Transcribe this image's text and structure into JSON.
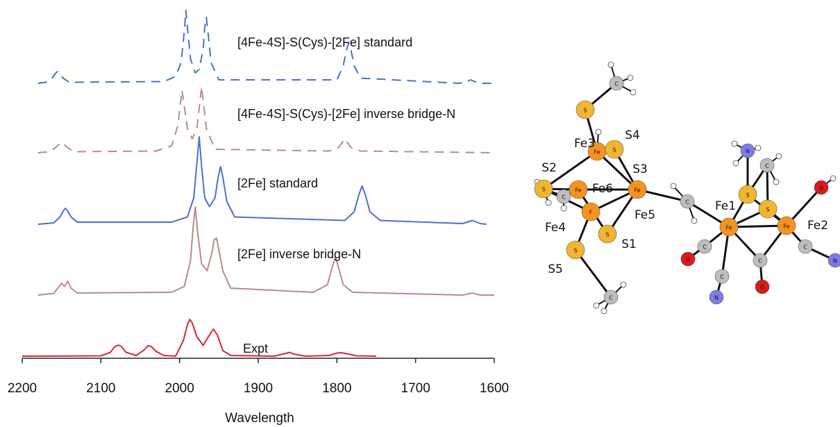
{
  "chart_data": {
    "type": "line",
    "x_label": "Wavelength",
    "xlim": [
      2200,
      1600
    ],
    "xticks": [
      2200,
      2100,
      2000,
      1900,
      1800,
      1700,
      1600
    ],
    "ylim": [
      0,
      106
    ],
    "series": [
      {
        "name": "[4Fe-4S]-S(Cys)-[2Fe] standard",
        "color": "#4a6fd4",
        "style": "dashed",
        "x": [
          2180,
          2170,
          2162,
          2158,
          2155,
          2152,
          2148,
          2140,
          2020,
          2005,
          1998,
          1994,
          1992,
          1990,
          1986,
          1980,
          1975,
          1970,
          1968,
          1966,
          1964,
          1960,
          1950,
          1800,
          1792,
          1788,
          1785,
          1782,
          1778,
          1770,
          1645,
          1635,
          1630,
          1625,
          1615,
          1600
        ],
        "values": [
          82,
          82.3,
          83.5,
          84.8,
          85.4,
          84.8,
          83.5,
          82.3,
          82.5,
          84,
          88,
          97,
          103,
          98,
          89,
          85,
          86,
          92,
          98,
          101,
          97,
          88,
          83,
          83,
          87,
          91.5,
          93.6,
          91.5,
          87,
          83.5,
          82,
          82.5,
          83,
          82.5,
          82,
          82
        ]
      },
      {
        "name": "[4Fe-4S]-S(Cys)-[2Fe] inverse bridge-N",
        "color": "#b98a8a",
        "style": "dashed",
        "x": [
          2180,
          2165,
          2156,
          2150,
          2144,
          2135,
          2030,
          2010,
          2002,
          1999,
          1997,
          1995,
          1990,
          1984,
          1978,
          1974,
          1972,
          1970,
          1966,
          1955,
          1810,
          1798,
          1793,
          1790,
          1787,
          1782,
          1770,
          1600
        ],
        "values": [
          62,
          62.3,
          63.8,
          65,
          63.8,
          62.3,
          62.5,
          64,
          70,
          76,
          80,
          77,
          69,
          66,
          69,
          77,
          81,
          77,
          69,
          63,
          62.5,
          63.5,
          65,
          66,
          65,
          63.5,
          62.5,
          62
        ]
      },
      {
        "name": "[2Fe] standard",
        "color": "#4a6fd4",
        "style": "solid",
        "x": [
          2180,
          2160,
          2152,
          2148,
          2145,
          2142,
          2138,
          2130,
          2010,
          1990,
          1982,
          1978,
          1975,
          1972,
          1968,
          1962,
          1955,
          1951,
          1948,
          1945,
          1940,
          1930,
          1790,
          1778,
          1772,
          1768,
          1764,
          1758,
          1745,
          1640,
          1628,
          1618,
          1610
        ],
        "values": [
          41.4,
          41.8,
          43.5,
          45.2,
          46,
          45.2,
          43.5,
          42,
          42,
          43.5,
          49,
          59,
          66.6,
          58,
          49,
          46.5,
          49,
          55,
          58,
          55,
          48,
          43.5,
          42.5,
          45,
          50,
          52.4,
          50,
          45,
          42.5,
          41.6,
          42.5,
          41.6,
          41.4
        ]
      },
      {
        "name": "[2Fe] inverse bridge-N",
        "color": "#b98a8a",
        "style": "solid",
        "x": [
          2180,
          2160,
          2153,
          2150,
          2146,
          2142,
          2138,
          2130,
          2010,
          1994,
          1986,
          1983,
          1980,
          1977,
          1972,
          1965,
          1959,
          1956,
          1953,
          1950,
          1945,
          1935,
          1830,
          1812,
          1806,
          1802,
          1798,
          1792,
          1780,
          1640,
          1628,
          1618,
          1600
        ],
        "values": [
          21,
          21.5,
          23.5,
          24.4,
          23.5,
          25,
          23,
          21.6,
          21.8,
          23.5,
          31,
          40,
          46.4,
          39,
          30,
          28,
          33,
          37,
          37.4,
          34,
          28,
          23,
          21.8,
          24,
          29,
          32,
          29,
          24,
          21.8,
          21,
          21.6,
          21,
          21
        ]
      },
      {
        "name": "Expt",
        "color": "#d9262c",
        "style": "solid",
        "x": [
          2200,
          2100,
          2088,
          2082,
          2078,
          2074,
          2068,
          2055,
          2045,
          2040,
          2036,
          2030,
          2020,
          2005,
          1995,
          1990,
          1987,
          1984,
          1978,
          1970,
          1962,
          1957,
          1952,
          1945,
          1935,
          1880,
          1865,
          1860,
          1855,
          1840,
          1810,
          1800,
          1795,
          1790,
          1775,
          1750
        ],
        "values": [
          3.4,
          3.5,
          4.5,
          6.2,
          6.6,
          6.2,
          4.5,
          3.6,
          5.2,
          6.4,
          6.2,
          4.8,
          3.6,
          3.4,
          8,
          12.5,
          14,
          13,
          9,
          6.5,
          9.5,
          11.2,
          9.5,
          5,
          3.6,
          3.4,
          4.2,
          4.5,
          4,
          3.4,
          3.6,
          4.3,
          4.4,
          4.2,
          3.5,
          3.4
        ]
      }
    ]
  },
  "diagram": {
    "atoms": [
      "C",
      "S",
      "Fe",
      "S",
      "S",
      "C",
      "Fe",
      "Fe",
      "F",
      "S",
      "S",
      "C",
      "C",
      "N",
      "C",
      "S",
      "S",
      "Fe",
      "Fe",
      "O",
      "C",
      "O",
      "C",
      "N",
      "C",
      "O",
      "C",
      "N"
    ],
    "labels": [
      "Fe3",
      "S4",
      "S2",
      "Fe6",
      "S3",
      "Fe4",
      "Fe5",
      "S1",
      "S5",
      "Fe1",
      "Fe2"
    ]
  }
}
